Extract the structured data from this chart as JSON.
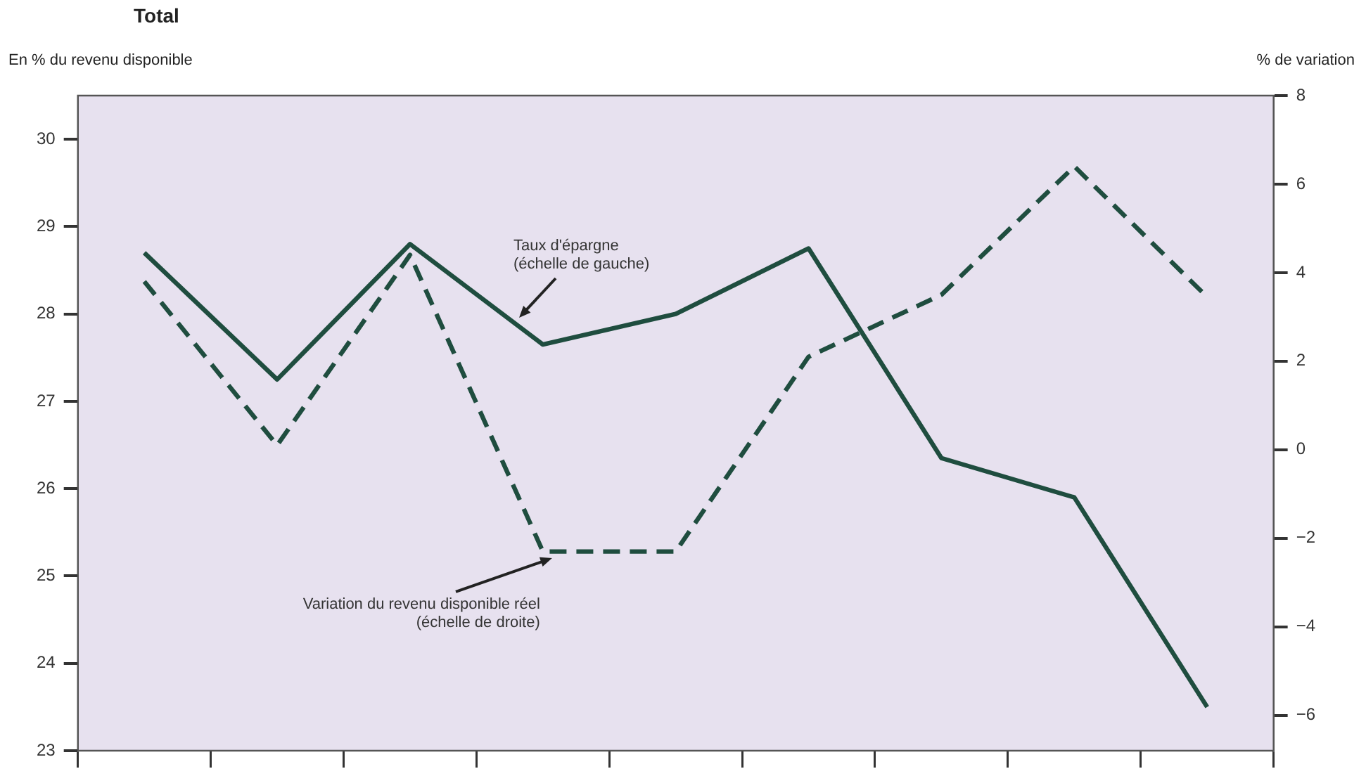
{
  "chart_data": {
    "type": "line",
    "title": "Total",
    "ylabel": "En % du revenu disponible",
    "y2label": "% de variation",
    "categories": [
      null,
      null,
      null,
      null,
      null,
      null,
      null,
      null,
      null
    ],
    "series": [
      {
        "color": "#1f4d3f",
        "line_style": "solid",
        "values": [
          28.7,
          27.25,
          28.8,
          27.65,
          28.0,
          28.75,
          26.35,
          25.9,
          23.5
        ]
      },
      {
        "color": "#1f4d3f",
        "line_style": "dashed",
        "axis": "y2",
        "values": [
          3.8,
          0.1,
          4.4,
          -2.3,
          -2.3,
          2.1,
          3.5,
          6.4,
          3.45
        ]
      }
    ],
    "ylim": [
      23,
      30.5
    ],
    "yticks": [
      23,
      24,
      25,
      26,
      27,
      28,
      29,
      30
    ],
    "y2lim": [
      -6.8,
      8
    ],
    "y2ticks": [
      -6,
      -4,
      -2,
      0,
      2,
      4,
      6,
      8
    ],
    "annotations": [
      "Taux d'épargne\n(échelle de gauche)",
      "Variation du revenu disponible réel\n(échelle de droite)"
    ],
    "tick_labels": "y",
    "grid": false,
    "legend": false,
    "marker": "none"
  }
}
